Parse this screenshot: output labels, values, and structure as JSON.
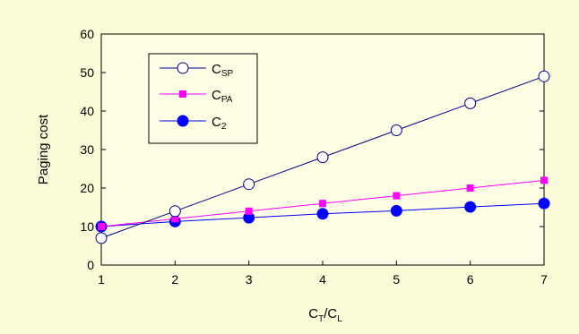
{
  "chart_data": {
    "type": "line",
    "x": [
      1,
      2,
      3,
      4,
      5,
      6,
      7
    ],
    "series": [
      {
        "name": "C_SP",
        "label_main": "C",
        "label_sub": "SP",
        "values": [
          7,
          14,
          21,
          28,
          35,
          42,
          49
        ],
        "color": "#00008b",
        "marker": "open-circle"
      },
      {
        "name": "C_PA",
        "label_main": "C",
        "label_sub": "PA",
        "values": [
          10,
          12,
          14,
          16,
          18,
          20,
          22
        ],
        "color": "#ff00ff",
        "marker": "filled-square"
      },
      {
        "name": "C_2",
        "label_main": "C",
        "label_sub": "2",
        "values": [
          10,
          11.3,
          12.3,
          13.3,
          14.1,
          15.1,
          16
        ],
        "color": "#0000ff",
        "marker": "filled-circle"
      }
    ],
    "xlim": [
      1,
      7
    ],
    "ylim": [
      0,
      60
    ],
    "xticks": [
      "1",
      "2",
      "3",
      "4",
      "5",
      "6",
      "7"
    ],
    "yticks": [
      "0",
      "10",
      "20",
      "30",
      "40",
      "50",
      "60"
    ],
    "xlabel_main": "C",
    "xlabel_sub1": "T",
    "xlabel_mid": "/C",
    "xlabel_sub2": "L",
    "ylabel": "Paging cost",
    "grid": false,
    "legend_position": "top-left",
    "plot_background": "#ffffe6",
    "page_background": "#fcfcd9"
  }
}
